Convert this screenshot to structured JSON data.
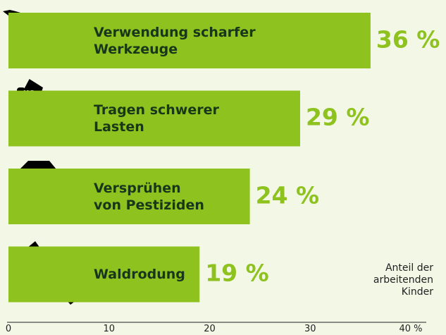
{
  "chart_data": {
    "type": "hbar",
    "categories": [
      "Verwendung scharfer\nWerkzeuge",
      "Tragen schwerer\nLasten",
      "Versprühen\nvon Pestiziden",
      "Waldrodung"
    ],
    "values": [
      36,
      29,
      24,
      19
    ],
    "value_labels": [
      "36 %",
      "29 %",
      "24 %",
      "19 %"
    ],
    "color": "#8dc21f",
    "xlim": [
      0,
      40
    ],
    "xticks": [
      0,
      10,
      20,
      30,
      {
        "value": 40,
        "label": "40 %"
      }
    ],
    "x_label": "Anteil der\narbeitenden\nKinder"
  }
}
